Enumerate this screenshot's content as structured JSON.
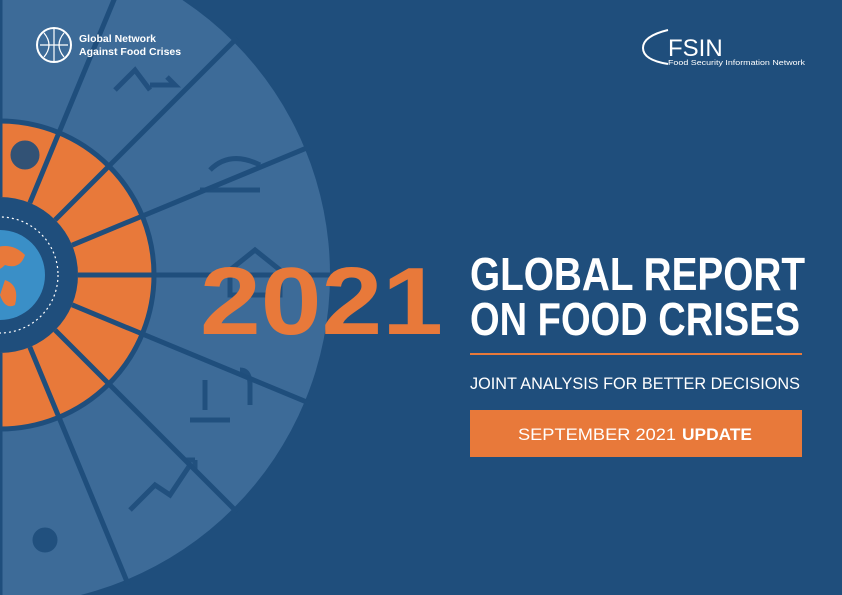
{
  "logos": {
    "gnafc_line1": "Global Network",
    "gnafc_line2": "Against Food Crises",
    "fsin": "FSIN",
    "fsin_full": "Food Security Information Network"
  },
  "cover": {
    "year": "2021",
    "title_line1": "GLOBAL REPORT",
    "title_line2": "ON FOOD CRISES",
    "subtitle": "JOINT ANALYSIS FOR BETTER DECISIONS",
    "edition": "SEPTEMBER 2021",
    "edition_tag": "UPDATE"
  }
}
